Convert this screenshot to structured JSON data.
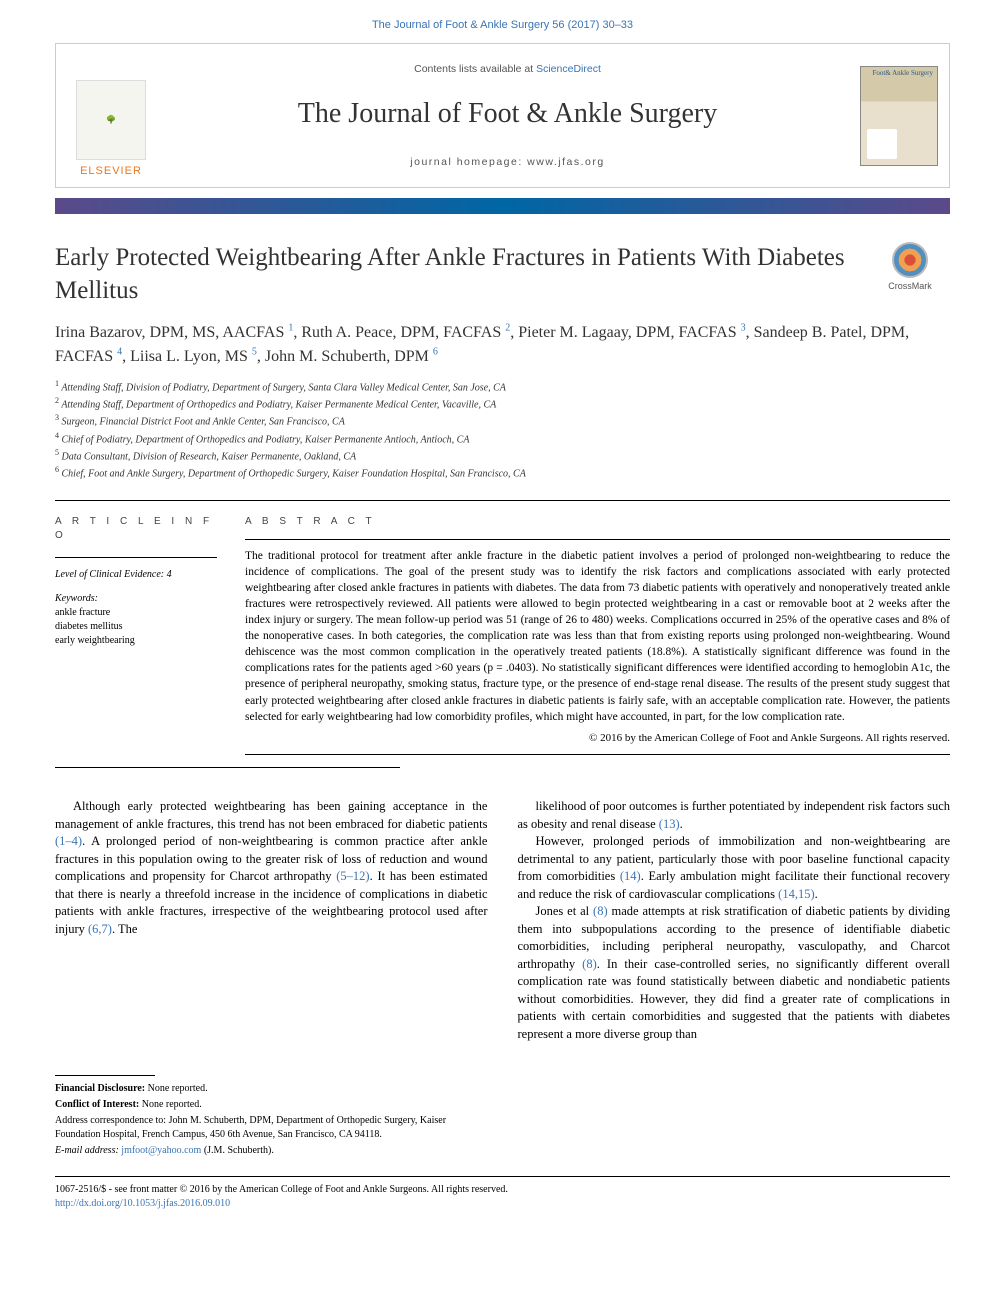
{
  "citation": "The Journal of Foot & Ankle Surgery 56 (2017) 30–33",
  "masthead": {
    "publisher": "ELSEVIER",
    "contents_prefix": "Contents lists available at ",
    "contents_link": "ScienceDirect",
    "journal_name": "The Journal of Foot & Ankle Surgery",
    "homepage_label": "journal homepage: www.jfas.org",
    "cover_text": "Foot&\nAnkle\nSurgery"
  },
  "crossmark_label": "CrossMark",
  "title": "Early Protected Weightbearing After Ankle Fractures in Patients With Diabetes Mellitus",
  "authors_html": "Irina Bazarov, DPM, MS, AACFAS <sup>1</sup>, Ruth A. Peace, DPM, FACFAS <sup>2</sup>, Pieter M. Lagaay, DPM, FACFAS <sup>3</sup>, Sandeep B. Patel, DPM, FACFAS <sup>4</sup>, Liisa L. Lyon, MS <sup>5</sup>, John M. Schuberth, DPM <sup>6</sup>",
  "affiliations": [
    "Attending Staff, Division of Podiatry, Department of Surgery, Santa Clara Valley Medical Center, San Jose, CA",
    "Attending Staff, Department of Orthopedics and Podiatry, Kaiser Permanente Medical Center, Vacaville, CA",
    "Surgeon, Financial District Foot and Ankle Center, San Francisco, CA",
    "Chief of Podiatry, Department of Orthopedics and Podiatry, Kaiser Permanente Antioch, Antioch, CA",
    "Data Consultant, Division of Research, Kaiser Permanente, Oakland, CA",
    "Chief, Foot and Ankle Surgery, Department of Orthopedic Surgery, Kaiser Foundation Hospital, San Francisco, CA"
  ],
  "article_info": {
    "heading": "A R T I C L E  I N F O",
    "evidence_label": "Level of Clinical Evidence:",
    "evidence_value": "4",
    "keywords_label": "Keywords:",
    "keywords": [
      "ankle fracture",
      "diabetes mellitus",
      "early weightbearing"
    ]
  },
  "abstract": {
    "heading": "A B S T R A C T",
    "text": "The traditional protocol for treatment after ankle fracture in the diabetic patient involves a period of prolonged non-weightbearing to reduce the incidence of complications. The goal of the present study was to identify the risk factors and complications associated with early protected weightbearing after closed ankle fractures in patients with diabetes. The data from 73 diabetic patients with operatively and nonoperatively treated ankle fractures were retrospectively reviewed. All patients were allowed to begin protected weightbearing in a cast or removable boot at 2 weeks after the index injury or surgery. The mean follow-up period was 51 (range of 26 to 480) weeks. Complications occurred in 25% of the operative cases and 8% of the nonoperative cases. In both categories, the complication rate was less than that from existing reports using prolonged non-weightbearing. Wound dehiscence was the most common complication in the operatively treated patients (18.8%). A statistically significant difference was found in the complications rates for the patients aged >60 years (p = .0403). No statistically significant differences were identified according to hemoglobin A1c, the presence of peripheral neuropathy, smoking status, fracture type, or the presence of end-stage renal disease. The results of the present study suggest that early protected weightbearing after closed ankle fractures in diabetic patients is fairly safe, with an acceptable complication rate. However, the patients selected for early weightbearing had low comorbidity profiles, which might have accounted, in part, for the low complication rate.",
    "copyright": "© 2016 by the American College of Foot and Ankle Surgeons. All rights reserved."
  },
  "body": {
    "left_paragraphs": [
      "Although early protected weightbearing has been gaining acceptance in the management of ankle fractures, this trend has not been embraced for diabetic patients (1–4). A prolonged period of non-weightbearing is common practice after ankle fractures in this population owing to the greater risk of loss of reduction and wound complications and propensity for Charcot arthropathy (5–12). It has been estimated that there is nearly a threefold increase in the incidence of complications in diabetic patients with ankle fractures, irrespective of the weightbearing protocol used after injury (6,7). The"
    ],
    "right_paragraphs": [
      "likelihood of poor outcomes is further potentiated by independent risk factors such as obesity and renal disease (13).",
      "However, prolonged periods of immobilization and non-weightbearing are detrimental to any patient, particularly those with poor baseline functional capacity from comorbidities (14). Early ambulation might facilitate their functional recovery and reduce the risk of cardiovascular complications (14,15).",
      "Jones et al (8) made attempts at risk stratification of diabetic patients by dividing them into subpopulations according to the presence of identifiable diabetic comorbidities, including peripheral neuropathy, vasculopathy, and Charcot arthropathy (8). In their case-controlled series, no significantly different overall complication rate was found statistically between diabetic and nondiabetic patients without comorbidities. However, they did find a greater rate of complications in patients with certain comorbidities and suggested that the patients with diabetes represent a more diverse group than"
    ],
    "refs": {
      "r1": "(1–4)",
      "r2": "(5–12)",
      "r3": "(6,7)",
      "r4": "(13)",
      "r5": "(14)",
      "r6": "(14,15)",
      "r7": "(8)",
      "r8": "(8)"
    }
  },
  "footnotes": {
    "financial_label": "Financial Disclosure:",
    "financial_value": "None reported.",
    "conflict_label": "Conflict of Interest:",
    "conflict_value": "None reported.",
    "address_text": "Address correspondence to: John M. Schuberth, DPM, Department of Orthopedic Surgery, Kaiser Foundation Hospital, French Campus, 450 6th Avenue, San Francisco, CA 94118.",
    "email_label": "E-mail address:",
    "email_value": "jmfoot@yahoo.com",
    "email_person": "(J.M. Schuberth)."
  },
  "bottom": {
    "issn_line": "1067-2516/$ - see front matter © 2016 by the American College of Foot and Ankle Surgeons. All rights reserved.",
    "doi": "http://dx.doi.org/10.1053/j.jfas.2016.09.010"
  },
  "colors": {
    "link": "#3974b5",
    "publisher_orange": "#e87722",
    "bar_gradient_a": "#5b4a8a",
    "bar_gradient_b": "#0066a4",
    "text": "#000000",
    "title_text": "#333333"
  }
}
